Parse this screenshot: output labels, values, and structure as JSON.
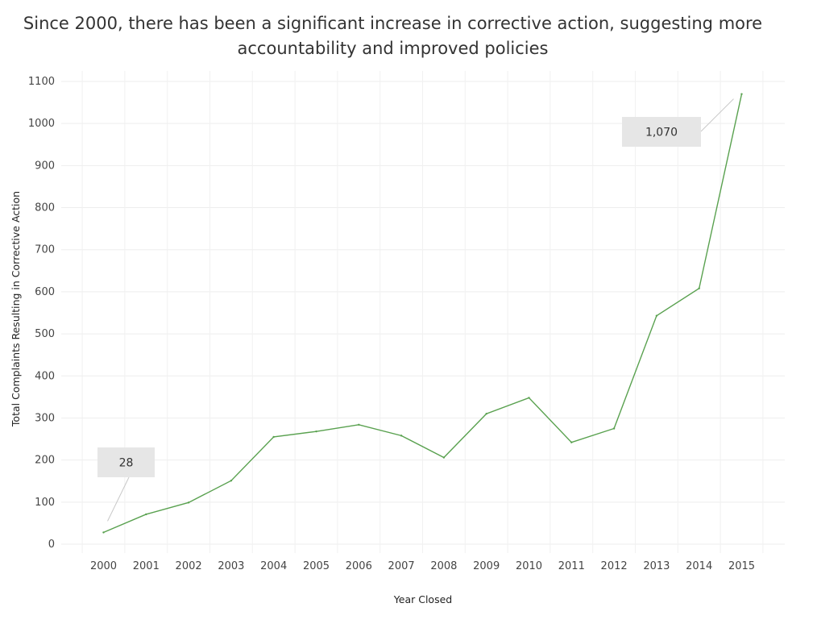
{
  "chart_data": {
    "type": "line",
    "title": [
      "Since 2000, there has been a significant increase in corrective action, suggesting more",
      "accountability and improved policies"
    ],
    "xlabel": "Year Closed",
    "ylabel": "Total Complaints Resulting in Corrective Action",
    "categories": [
      "2000",
      "2001",
      "2002",
      "2003",
      "2004",
      "2005",
      "2006",
      "2007",
      "2008",
      "2009",
      "2010",
      "2011",
      "2012",
      "2013",
      "2014",
      "2015"
    ],
    "values": [
      28,
      71,
      99,
      151,
      255,
      268,
      284,
      258,
      206,
      310,
      348,
      242,
      275,
      543,
      608,
      1070
    ],
    "ylim": [
      0,
      1100
    ],
    "yticks": [
      "0",
      "100",
      "200",
      "300",
      "400",
      "500",
      "600",
      "700",
      "800",
      "900",
      "1000",
      "1100"
    ],
    "grid": true,
    "line_color": "#59a14f",
    "annotations": [
      {
        "category": "2000",
        "label": "28"
      },
      {
        "category": "2015",
        "label": "1,070"
      }
    ]
  }
}
